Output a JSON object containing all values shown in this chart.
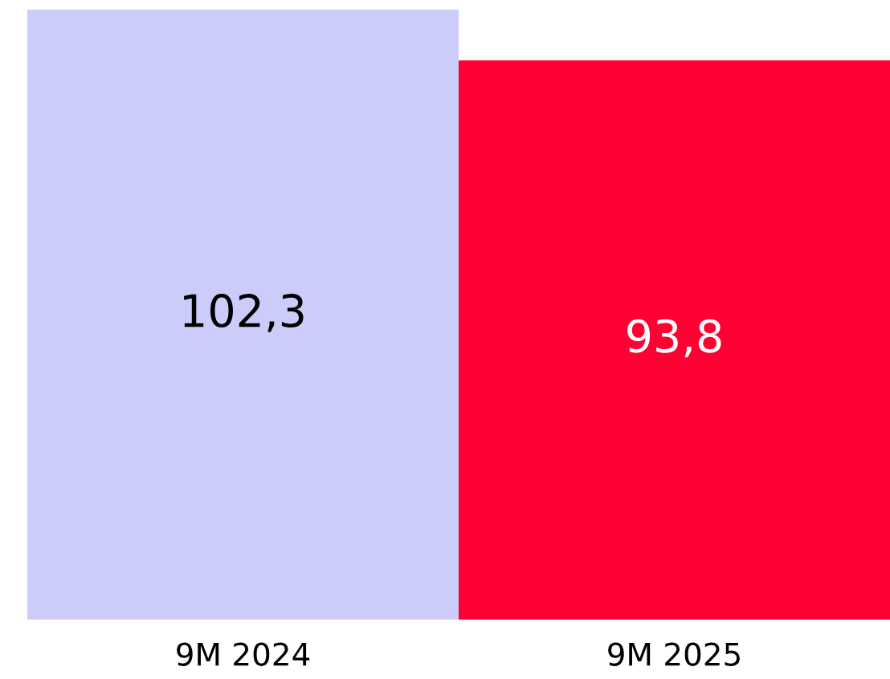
{
  "chart_data": {
    "type": "bar",
    "categories": [
      "9M 2024",
      "9M 2025"
    ],
    "values": [
      102.3,
      93.8
    ],
    "colors": [
      "#ccccfa",
      "#ff0033"
    ],
    "value_labels": [
      "102,3",
      "93,8"
    ],
    "grid": false,
    "legend": false
  }
}
